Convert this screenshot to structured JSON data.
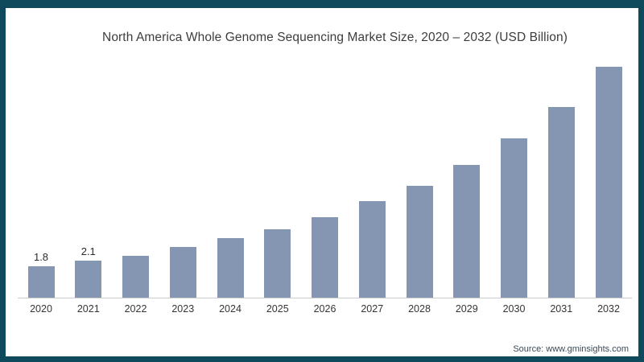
{
  "page": {
    "title": "North America Whole Genome Sequencing Market Size, 2020 – 2032 (USD Billion)",
    "source": "Source: www.gminsights.com"
  },
  "colors": {
    "frame_border": "#0e4a5c",
    "bar": "#8496b1",
    "axis_line": "#cccccc",
    "title_text": "#3d3d3d",
    "source_text": "#3a4a57"
  },
  "chart_data": {
    "type": "bar",
    "title": "North America Whole Genome Sequencing Market Size, 2020 – 2032 (USD Billion)",
    "categories": [
      "2020",
      "2021",
      "2022",
      "2023",
      "2024",
      "2025",
      "2026",
      "2027",
      "2028",
      "2029",
      "2030",
      "2031",
      "2032"
    ],
    "values": [
      1.8,
      2.1,
      2.4,
      2.9,
      3.4,
      3.9,
      4.6,
      5.5,
      6.4,
      7.6,
      9.1,
      10.9,
      13.2
    ],
    "data_labels": [
      "1.8",
      "2.1",
      "",
      "",
      "",
      "",
      "",
      "",
      "",
      "",
      "",
      "",
      ""
    ],
    "xlabel": "",
    "ylabel": "",
    "unit": "USD Billion",
    "ylim": [
      0,
      13.5
    ],
    "grid": false,
    "legend": false,
    "y_axis_visible": false,
    "x_axis_line": true
  }
}
